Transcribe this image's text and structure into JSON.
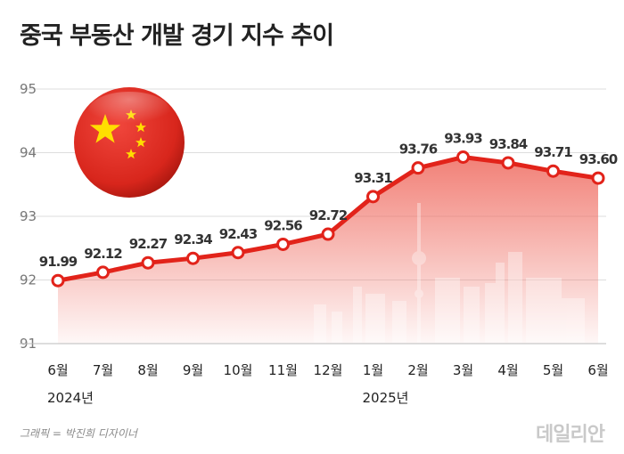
{
  "title": "중국 부동산 개발 경기 지수 추이",
  "credit": "그래픽 = 박진희 디자이너",
  "logo": "데일리안",
  "colors": {
    "line": "#e2231a",
    "marker_fill": "#ffffff",
    "grid": "#dddddd",
    "area": "#f28b82"
  },
  "chart_data": {
    "type": "line",
    "categories": [
      "6월",
      "7월",
      "8월",
      "9월",
      "10월",
      "11월",
      "12월",
      "1월",
      "2월",
      "3월",
      "4월",
      "5월",
      "6월"
    ],
    "year_labels": [
      {
        "index": 0,
        "label": "2024년"
      },
      {
        "index": 7,
        "label": "2025년"
      }
    ],
    "values": [
      91.99,
      92.12,
      92.27,
      92.34,
      92.43,
      92.56,
      92.72,
      93.31,
      93.76,
      93.93,
      93.84,
      93.71,
      93.6
    ],
    "value_labels": [
      "91.99",
      "92.12",
      "92.27",
      "92.34",
      "92.43",
      "92.56",
      "92.72",
      "93.31",
      "93.76",
      "93.93",
      "93.84",
      "93.71",
      "93.60"
    ],
    "yticks": [
      "91",
      "92",
      "93",
      "94",
      "95"
    ],
    "ylim": [
      91,
      95
    ],
    "grid": true
  }
}
